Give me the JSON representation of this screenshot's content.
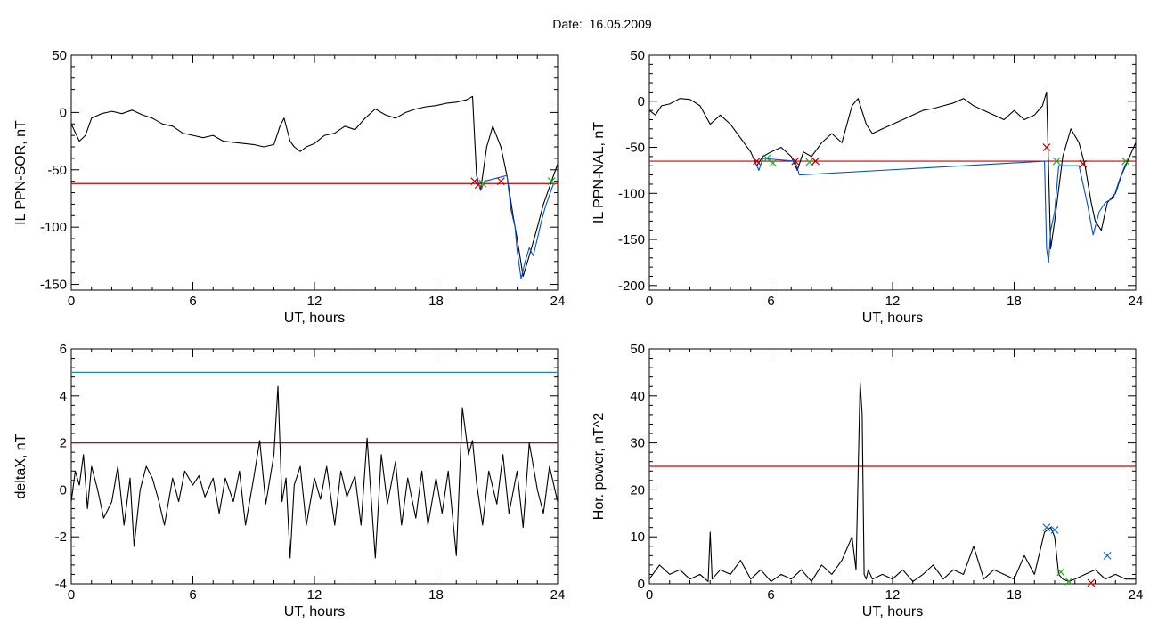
{
  "header": {
    "title": "Date:  16.05.2009"
  },
  "colors": {
    "threshold_red": "#cc0000",
    "threshold_teal": "#1a8fa0",
    "series_black": "#000000",
    "highlight_blue": "#0050d0",
    "marker_red": "#c00000",
    "marker_green": "#22aa22",
    "marker_blue": "#1070d0"
  },
  "chart_data": [
    {
      "id": "p1",
      "type": "line",
      "xlabel": "UT, hours",
      "ylabel": "IL PPN-SOR, nT",
      "xlim": [
        0,
        24
      ],
      "ylim": [
        -155,
        50
      ],
      "xticks": [
        0,
        6,
        12,
        18,
        24
      ],
      "yticks": [
        50,
        0,
        -50,
        -100,
        -150
      ],
      "threshold": -62,
      "series": [
        {
          "color": "#000000",
          "x": [
            0,
            0.4,
            0.7,
            1,
            1.5,
            2,
            2.5,
            3,
            3.5,
            4,
            4.5,
            5,
            5.5,
            6,
            6.5,
            7,
            7.5,
            8,
            8.5,
            9,
            9.5,
            10,
            10.3,
            10.5,
            10.8,
            11,
            11.3,
            11.6,
            12,
            12.5,
            13,
            13.5,
            14,
            14.5,
            15,
            15.5,
            16,
            16.5,
            17,
            17.5,
            18,
            18.5,
            19,
            19.5,
            19.8,
            20,
            20.2,
            20.5,
            20.8,
            21.2,
            21.5,
            21.8,
            22,
            22.3,
            22.6,
            23,
            23.3,
            23.6,
            24
          ],
          "y": [
            -10,
            -25,
            -20,
            -5,
            -1,
            1,
            -1,
            2,
            -2,
            -5,
            -10,
            -12,
            -18,
            -20,
            -22,
            -20,
            -25,
            -26,
            -27,
            -28,
            -30,
            -28,
            -12,
            -5,
            -25,
            -30,
            -34,
            -30,
            -27,
            -20,
            -18,
            -12,
            -15,
            -5,
            3,
            -2,
            -5,
            0,
            3,
            5,
            6,
            8,
            9,
            11,
            14,
            -55,
            -68,
            -30,
            -12,
            -30,
            -55,
            -90,
            -110,
            -143,
            -125,
            -100,
            -80,
            -65,
            -45
          ]
        },
        {
          "color": "#0050d0",
          "x": [
            20,
            20.2,
            20.4,
            21.5,
            21.7,
            21.9,
            22,
            22.2,
            22.4,
            22.6,
            22.8,
            23,
            23.2,
            23.4,
            23.6,
            23.8
          ],
          "y": [
            -55,
            -68,
            -60,
            -55,
            -85,
            -100,
            -120,
            -145,
            -130,
            -118,
            -125,
            -110,
            -95,
            -82,
            -72,
            -62
          ]
        }
      ],
      "markers": [
        {
          "x": 19.9,
          "y": -60,
          "color": "#c00000"
        },
        {
          "x": 20.1,
          "y": -63,
          "color": "#c00000"
        },
        {
          "x": 20.3,
          "y": -62,
          "color": "#22aa22"
        },
        {
          "x": 21.2,
          "y": -60,
          "color": "#c00000"
        },
        {
          "x": 23.7,
          "y": -60,
          "color": "#22aa22"
        }
      ]
    },
    {
      "id": "p2",
      "type": "line",
      "xlabel": "UT, hours",
      "ylabel": "IL PPN-NAL, nT",
      "xlim": [
        0,
        24
      ],
      "ylim": [
        -205,
        50
      ],
      "xticks": [
        0,
        6,
        12,
        18,
        24
      ],
      "yticks": [
        50,
        0,
        -50,
        -100,
        -150,
        -200
      ],
      "threshold": -65,
      "series": [
        {
          "color": "#000000",
          "x": [
            0,
            0.3,
            0.6,
            1,
            1.5,
            2,
            2.5,
            3,
            3.5,
            4,
            4.5,
            5,
            5.3,
            5.6,
            6,
            6.5,
            7,
            7.3,
            7.6,
            8,
            8.5,
            9,
            9.5,
            10,
            10.3,
            10.7,
            11,
            11.5,
            12,
            12.5,
            13,
            13.5,
            14,
            14.5,
            15,
            15.5,
            16,
            16.5,
            17,
            17.5,
            18,
            18.5,
            19,
            19.4,
            19.6,
            19.8,
            20,
            20.4,
            20.8,
            21.2,
            21.5,
            21.8,
            22,
            22.3,
            22.6,
            23,
            23.3,
            23.6,
            24
          ],
          "y": [
            -10,
            -15,
            -5,
            -3,
            3,
            2,
            -5,
            -25,
            -15,
            -25,
            -40,
            -55,
            -70,
            -60,
            -55,
            -50,
            -60,
            -75,
            -55,
            -60,
            -45,
            -35,
            -45,
            -5,
            3,
            -25,
            -35,
            -30,
            -25,
            -20,
            -15,
            -10,
            -8,
            -5,
            -2,
            3,
            -5,
            -10,
            -15,
            -20,
            -10,
            -20,
            -15,
            -5,
            10,
            -160,
            -130,
            -60,
            -30,
            -45,
            -70,
            -110,
            -130,
            -140,
            -110,
            -100,
            -80,
            -65,
            -45
          ]
        },
        {
          "color": "#0050d0",
          "x": [
            5.2,
            5.4,
            5.6,
            7.2,
            7.4,
            19.5,
            19.6,
            19.7,
            19.8,
            20,
            20.2,
            21.2,
            21.6,
            21.9,
            22.2,
            22.5,
            22.9,
            23.2,
            23.5
          ],
          "y": [
            -65,
            -75,
            -62,
            -65,
            -80,
            -65,
            -160,
            -175,
            -140,
            -120,
            -70,
            -70,
            -110,
            -145,
            -120,
            -110,
            -105,
            -85,
            -68
          ]
        }
      ],
      "markers": [
        {
          "x": 5.3,
          "y": -65,
          "color": "#c00000"
        },
        {
          "x": 5.8,
          "y": -62,
          "color": "#22aa22"
        },
        {
          "x": 6.1,
          "y": -67,
          "color": "#22aa22"
        },
        {
          "x": 7.2,
          "y": -65,
          "color": "#c00000"
        },
        {
          "x": 7.9,
          "y": -66,
          "color": "#22aa22"
        },
        {
          "x": 8.2,
          "y": -65,
          "color": "#c00000"
        },
        {
          "x": 19.6,
          "y": -50,
          "color": "#c00000"
        },
        {
          "x": 20.1,
          "y": -65,
          "color": "#22aa22"
        },
        {
          "x": 21.4,
          "y": -68,
          "color": "#c00000"
        },
        {
          "x": 23.5,
          "y": -65,
          "color": "#22aa22"
        }
      ]
    },
    {
      "id": "p3",
      "type": "line",
      "xlabel": "UT, hours",
      "ylabel": "deltaX, nT",
      "xlim": [
        0,
        24
      ],
      "ylim": [
        -4,
        6
      ],
      "xticks": [
        0,
        6,
        12,
        18,
        24
      ],
      "yticks": [
        6,
        4,
        2,
        0,
        -2,
        -4
      ],
      "threshold": 2,
      "threshold2": 5,
      "series": [
        {
          "color": "#000000",
          "x": [
            0,
            0.2,
            0.4,
            0.6,
            0.8,
            1,
            1.3,
            1.6,
            2,
            2.3,
            2.6,
            2.9,
            3.1,
            3.4,
            3.7,
            4,
            4.3,
            4.6,
            5,
            5.3,
            5.6,
            6,
            6.3,
            6.6,
            7,
            7.3,
            7.6,
            8,
            8.3,
            8.6,
            9,
            9.3,
            9.6,
            10,
            10.2,
            10.4,
            10.6,
            10.8,
            11,
            11.3,
            11.6,
            12,
            12.3,
            12.6,
            13,
            13.3,
            13.6,
            14,
            14.3,
            14.6,
            15,
            15.3,
            15.6,
            16,
            16.3,
            16.6,
            17,
            17.3,
            17.6,
            18,
            18.3,
            18.6,
            19,
            19.3,
            19.6,
            19.8,
            20,
            20.3,
            20.6,
            21,
            21.3,
            21.6,
            22,
            22.3,
            22.6,
            23,
            23.3,
            23.6,
            24
          ],
          "y": [
            -0.5,
            0.8,
            0.2,
            1.5,
            -0.8,
            1,
            0,
            -1.2,
            -0.5,
            1,
            -1.5,
            0.5,
            -2.4,
            0,
            1,
            0.5,
            -0.4,
            -1.5,
            0.5,
            -0.5,
            0.8,
            0.2,
            0.6,
            -0.3,
            0.5,
            -1,
            0.5,
            -0.5,
            0.8,
            -1.5,
            0.5,
            2.1,
            -0.6,
            1.5,
            4.4,
            -0.5,
            0.5,
            -2.9,
            0.2,
            1,
            -1.5,
            0.5,
            -0.4,
            1,
            -1.5,
            0.8,
            -0.3,
            0.6,
            -1.5,
            2.2,
            -2.9,
            1.5,
            -0.6,
            1.2,
            -1.5,
            0.5,
            -1.2,
            0.8,
            -1.5,
            0.5,
            -1,
            0.8,
            -2.8,
            3.5,
            1.5,
            2.1,
            0.3,
            -1.5,
            0.8,
            -0.6,
            1.5,
            -1,
            0.8,
            -1.6,
            2,
            0,
            -1,
            1,
            -0.5
          ]
        }
      ],
      "markers": []
    },
    {
      "id": "p4",
      "type": "line",
      "xlabel": "UT, hours",
      "ylabel": "Hor. power, nT^2",
      "xlim": [
        0,
        24
      ],
      "ylim": [
        0,
        50
      ],
      "xticks": [
        0,
        6,
        12,
        18,
        24
      ],
      "yticks": [
        50,
        40,
        30,
        20,
        10,
        0
      ],
      "threshold": 25,
      "series": [
        {
          "color": "#000000",
          "x": [
            0,
            0.5,
            1,
            1.5,
            2,
            2.5,
            2.9,
            3,
            3.1,
            3.5,
            4,
            4.5,
            5,
            5.5,
            6,
            6.5,
            7,
            7.5,
            8,
            8.5,
            9,
            9.5,
            10,
            10.2,
            10.4,
            10.5,
            10.6,
            10.7,
            10.8,
            11,
            11.5,
            12,
            12.5,
            13,
            13.5,
            14,
            14.5,
            15,
            15.5,
            16,
            16.5,
            17,
            17.5,
            18,
            18.5,
            19,
            19.5,
            19.8,
            20,
            20.2,
            20.4,
            20.7,
            21,
            21.5,
            22,
            22.5,
            23,
            23.5,
            24
          ],
          "y": [
            1,
            4,
            2,
            3,
            1,
            2,
            0.5,
            11,
            1,
            3,
            2,
            5,
            1,
            3,
            0.5,
            2,
            1,
            3,
            0.5,
            4,
            2,
            5,
            10,
            3,
            43,
            36,
            2,
            1,
            3,
            1,
            2,
            1,
            3,
            0.5,
            2,
            4,
            1,
            3,
            2,
            8,
            1,
            3,
            2,
            1,
            6,
            2,
            11,
            12,
            10,
            2,
            1,
            0.5,
            1,
            2,
            3,
            1,
            2,
            1,
            1
          ]
        }
      ],
      "markers": [
        {
          "x": 19.6,
          "y": 12,
          "color": "#1070d0"
        },
        {
          "x": 20,
          "y": 11.5,
          "color": "#1070d0"
        },
        {
          "x": 20.3,
          "y": 2.5,
          "color": "#22aa22"
        },
        {
          "x": 20.7,
          "y": 0.5,
          "color": "#22aa22"
        },
        {
          "x": 21.8,
          "y": 0.2,
          "color": "#c00000"
        },
        {
          "x": 22.6,
          "y": 6,
          "color": "#1070d0"
        }
      ]
    }
  ]
}
